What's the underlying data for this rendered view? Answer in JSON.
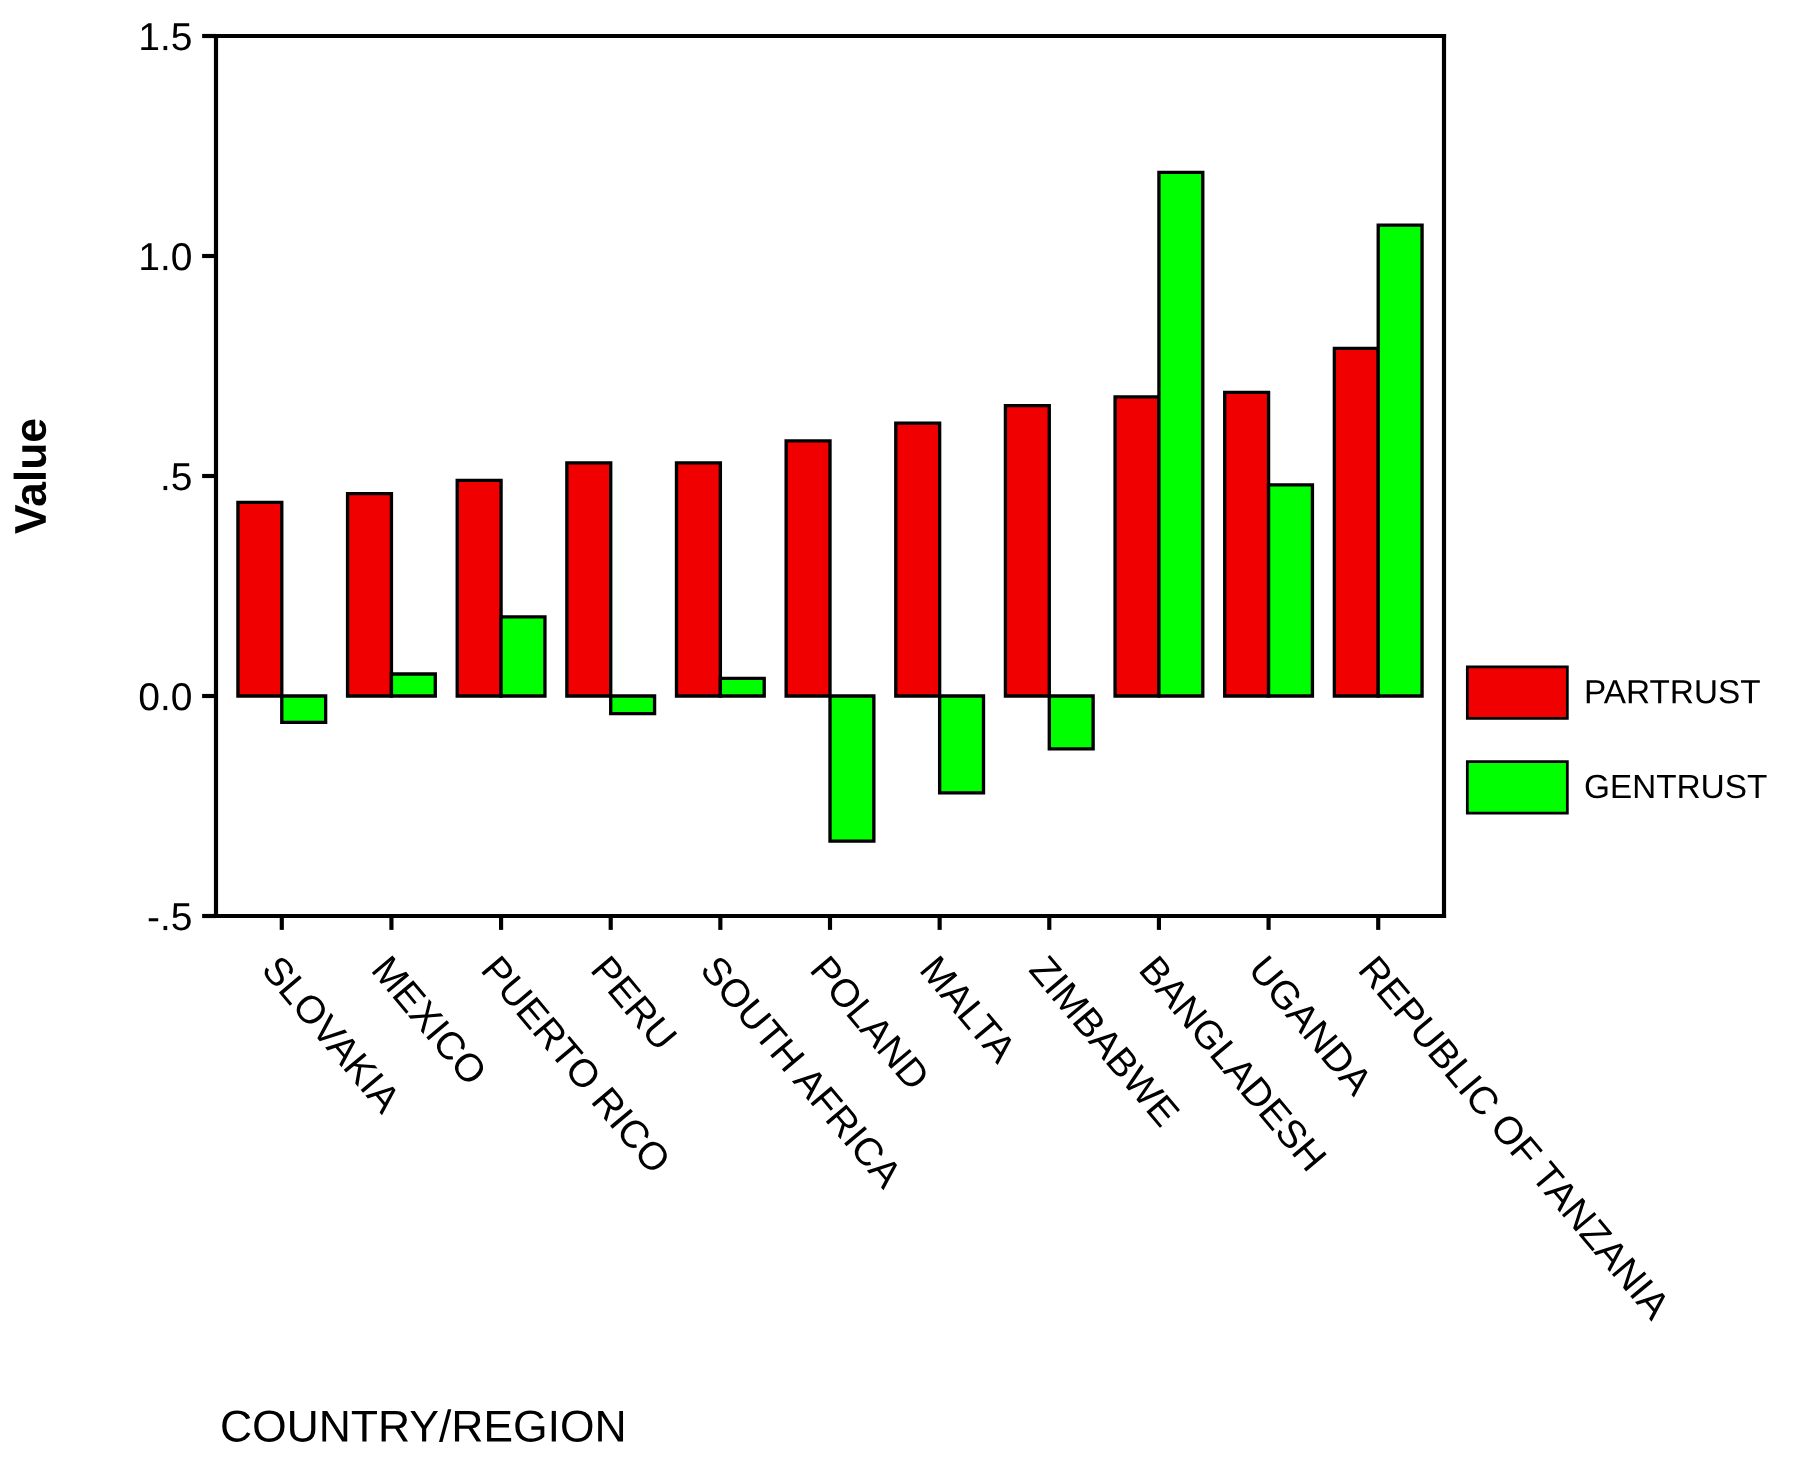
{
  "chart_data": {
    "type": "bar",
    "xlabel": "COUNTRY/REGION",
    "ylabel": "Value",
    "categories": [
      "SLOVAKIA",
      "MEXICO",
      "PUERTO RICO",
      "PERU",
      "SOUTH AFRICA",
      "POLAND",
      "MALTA",
      "ZIMBABWE",
      "BANGLADESH",
      "UGANDA",
      "REPUBLIC OF TANZANIA"
    ],
    "series": [
      {
        "name": "PARTRUST",
        "color": "#f00000",
        "values": [
          0.44,
          0.46,
          0.49,
          0.53,
          0.53,
          0.58,
          0.62,
          0.66,
          0.68,
          0.69,
          0.79
        ]
      },
      {
        "name": "GENTRUST",
        "color": "#00ff00",
        "values": [
          -0.06,
          0.05,
          0.18,
          -0.04,
          0.04,
          -0.33,
          -0.22,
          -0.12,
          1.19,
          0.48,
          1.07
        ]
      }
    ],
    "ylim": [
      -0.5,
      1.5
    ],
    "yticks": [
      {
        "value": -0.5,
        "label": "-.5"
      },
      {
        "value": 0.0,
        "label": "0.0"
      },
      {
        "value": 0.5,
        "label": ".5"
      },
      {
        "value": 1.0,
        "label": "1.0"
      },
      {
        "value": 1.5,
        "label": "1.5"
      }
    ],
    "legend": "right",
    "grid": false
  }
}
